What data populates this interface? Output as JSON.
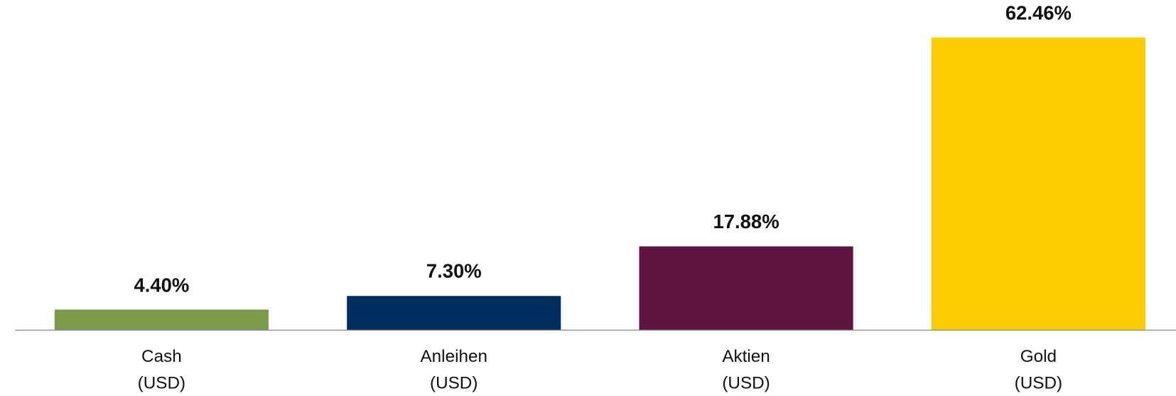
{
  "chart_data": {
    "type": "bar",
    "categories": [
      "Cash\n(USD)",
      "Anleihen\n(USD)",
      "Aktien\n(USD)",
      "Gold\n(USD)"
    ],
    "values": [
      4.4,
      7.3,
      17.88,
      62.46
    ],
    "value_labels": [
      "4.40%",
      "7.30%",
      "17.88%",
      "62.46%"
    ],
    "colors": [
      "#7a9c4a",
      "#002d5f",
      "#601442",
      "#fccc00"
    ],
    "ylim": [
      0,
      70.46
    ]
  }
}
